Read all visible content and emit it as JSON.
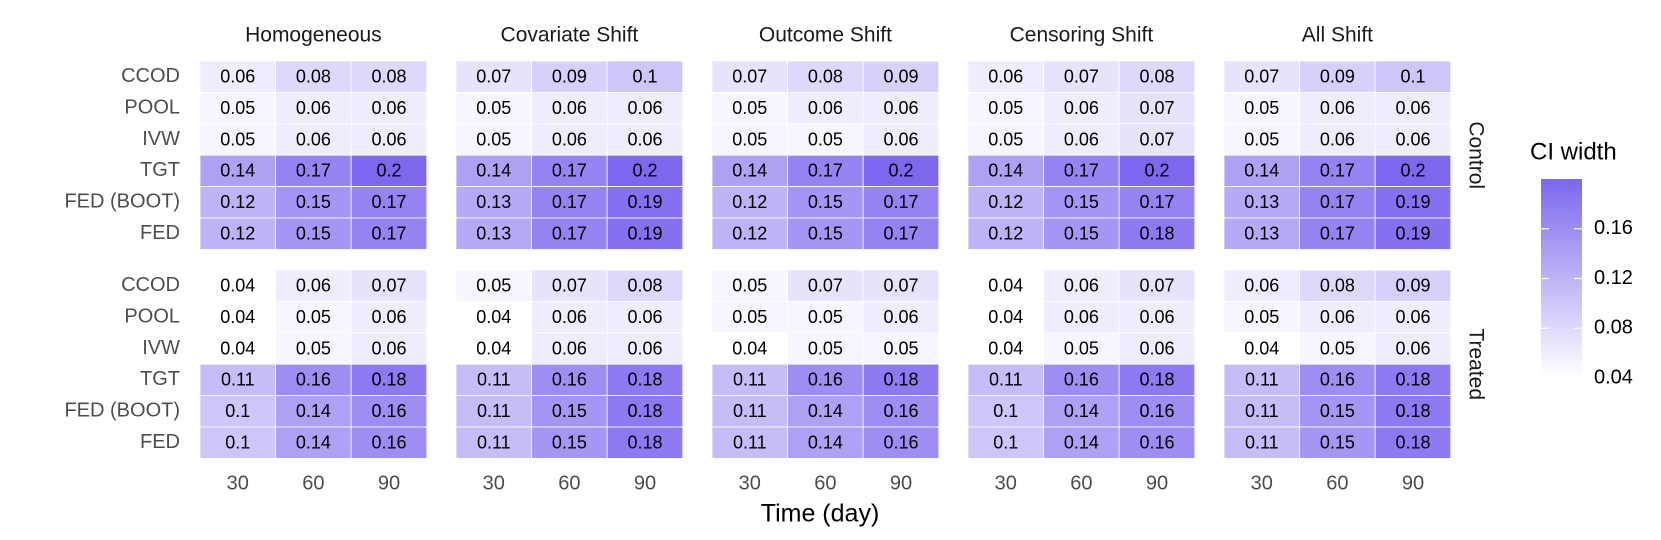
{
  "chart_data": {
    "type": "heatmap",
    "x_label": "Time (day)",
    "x": [
      30,
      60,
      90
    ],
    "methods": [
      "CCOD",
      "POOL",
      "IVW",
      "TGT",
      "FED (BOOT)",
      "FED"
    ],
    "columns": [
      "Homogeneous",
      "Covariate Shift",
      "Outcome Shift",
      "Censoring Shift",
      "All Shift"
    ],
    "rows": [
      "Control",
      "Treated"
    ],
    "values": [
      [
        [
          [
            0.06,
            0.08,
            0.08
          ],
          [
            0.05,
            0.06,
            0.06
          ],
          [
            0.05,
            0.06,
            0.06
          ],
          [
            0.14,
            0.17,
            0.2
          ],
          [
            0.12,
            0.15,
            0.17
          ],
          [
            0.12,
            0.15,
            0.17
          ]
        ],
        [
          [
            0.07,
            0.09,
            0.1
          ],
          [
            0.05,
            0.06,
            0.06
          ],
          [
            0.05,
            0.06,
            0.06
          ],
          [
            0.14,
            0.17,
            0.2
          ],
          [
            0.13,
            0.17,
            0.19
          ],
          [
            0.13,
            0.17,
            0.19
          ]
        ],
        [
          [
            0.07,
            0.08,
            0.09
          ],
          [
            0.05,
            0.06,
            0.06
          ],
          [
            0.05,
            0.05,
            0.06
          ],
          [
            0.14,
            0.17,
            0.2
          ],
          [
            0.12,
            0.15,
            0.17
          ],
          [
            0.12,
            0.15,
            0.17
          ]
        ],
        [
          [
            0.06,
            0.07,
            0.08
          ],
          [
            0.05,
            0.06,
            0.07
          ],
          [
            0.05,
            0.06,
            0.07
          ],
          [
            0.14,
            0.17,
            0.2
          ],
          [
            0.12,
            0.15,
            0.17
          ],
          [
            0.12,
            0.15,
            0.18
          ]
        ],
        [
          [
            0.07,
            0.09,
            0.1
          ],
          [
            0.05,
            0.06,
            0.06
          ],
          [
            0.05,
            0.06,
            0.06
          ],
          [
            0.14,
            0.17,
            0.2
          ],
          [
            0.13,
            0.17,
            0.19
          ],
          [
            0.13,
            0.17,
            0.19
          ]
        ]
      ],
      [
        [
          [
            0.04,
            0.06,
            0.07
          ],
          [
            0.04,
            0.05,
            0.06
          ],
          [
            0.04,
            0.05,
            0.06
          ],
          [
            0.11,
            0.16,
            0.18
          ],
          [
            0.1,
            0.14,
            0.16
          ],
          [
            0.1,
            0.14,
            0.16
          ]
        ],
        [
          [
            0.05,
            0.07,
            0.08
          ],
          [
            0.04,
            0.06,
            0.06
          ],
          [
            0.04,
            0.06,
            0.06
          ],
          [
            0.11,
            0.16,
            0.18
          ],
          [
            0.11,
            0.15,
            0.18
          ],
          [
            0.11,
            0.15,
            0.18
          ]
        ],
        [
          [
            0.05,
            0.07,
            0.07
          ],
          [
            0.05,
            0.05,
            0.06
          ],
          [
            0.04,
            0.05,
            0.05
          ],
          [
            0.11,
            0.16,
            0.18
          ],
          [
            0.11,
            0.14,
            0.16
          ],
          [
            0.11,
            0.14,
            0.16
          ]
        ],
        [
          [
            0.04,
            0.06,
            0.07
          ],
          [
            0.04,
            0.06,
            0.06
          ],
          [
            0.04,
            0.05,
            0.06
          ],
          [
            0.11,
            0.16,
            0.18
          ],
          [
            0.1,
            0.14,
            0.16
          ],
          [
            0.1,
            0.14,
            0.16
          ]
        ],
        [
          [
            0.06,
            0.08,
            0.09
          ],
          [
            0.05,
            0.06,
            0.06
          ],
          [
            0.04,
            0.05,
            0.06
          ],
          [
            0.11,
            0.16,
            0.18
          ],
          [
            0.11,
            0.15,
            0.18
          ],
          [
            0.11,
            0.15,
            0.18
          ]
        ]
      ]
    ],
    "legend_title": "CI width",
    "colorbar": {
      "lim": [
        0.04,
        0.2
      ],
      "ticks": [
        0.04,
        0.08,
        0.12,
        0.16
      ],
      "low_color": "#ffffff",
      "high_color": "#7b68ee"
    }
  }
}
